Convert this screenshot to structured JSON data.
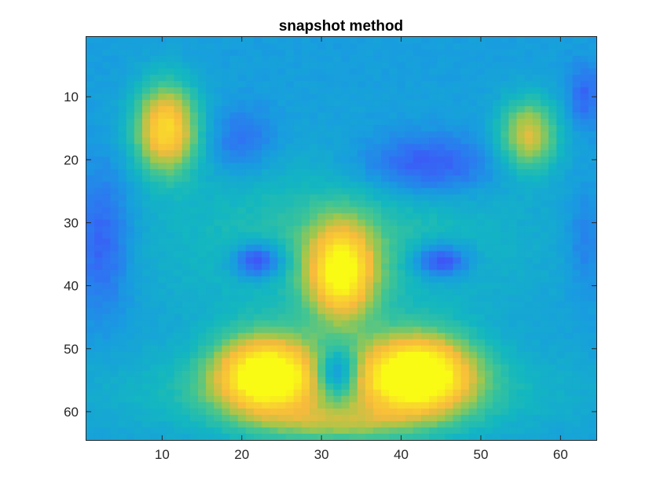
{
  "chart_data": {
    "type": "heatmap",
    "title": "snapshot method",
    "xlabel": "",
    "ylabel": "",
    "grid": false,
    "colormap": "parula",
    "colormap_stops": [
      "#3e26a8",
      "#4743f8",
      "#2f73f3",
      "#189ddf",
      "#13b7c0",
      "#42c592",
      "#a2c74b",
      "#f7ba3c",
      "#f9d42e",
      "#f9fb15"
    ],
    "x_range": [
      1,
      64
    ],
    "y_range": [
      1,
      64
    ],
    "y_reversed": true,
    "x_ticks": [
      10,
      20,
      30,
      40,
      50,
      60
    ],
    "y_ticks": [
      10,
      20,
      30,
      40,
      50,
      60
    ],
    "x_tick_labels": [
      "10",
      "20",
      "30",
      "40",
      "50",
      "60"
    ],
    "y_tick_labels": [
      "10",
      "20",
      "30",
      "40",
      "50",
      "60"
    ],
    "value_range": [
      0,
      1
    ],
    "background_level": 0.34,
    "features": [
      {
        "x": 10.5,
        "y": 15,
        "sx": 2.8,
        "sy": 5.0,
        "amp": 0.56
      },
      {
        "x": 56,
        "y": 16,
        "sx": 2.6,
        "sy": 4.0,
        "amp": 0.4
      },
      {
        "x": 20,
        "y": 17,
        "sx": 3.0,
        "sy": 3.5,
        "amp": -0.14
      },
      {
        "x": 43,
        "y": 21,
        "sx": 6.0,
        "sy": 3.5,
        "amp": -0.22
      },
      {
        "x": 2.5,
        "y": 33,
        "sx": 2.5,
        "sy": 8.0,
        "amp": -0.18
      },
      {
        "x": 63,
        "y": 10,
        "sx": 1.5,
        "sy": 3.5,
        "amp": -0.15
      },
      {
        "x": 63,
        "y": 33,
        "sx": 1.5,
        "sy": 6.0,
        "amp": -0.1
      },
      {
        "x": 32,
        "y": 33,
        "sx": 16.0,
        "sy": 9.0,
        "amp": 0.18
      },
      {
        "x": 22,
        "y": 36,
        "sx": 2.3,
        "sy": 2.0,
        "amp": -0.32
      },
      {
        "x": 45,
        "y": 36,
        "sx": 2.6,
        "sy": 2.0,
        "amp": -0.3
      },
      {
        "x": 32.5,
        "y": 38,
        "sx": 3.0,
        "sy": 5.5,
        "amp": 0.58
      },
      {
        "x": 23,
        "y": 54,
        "sx": 4.5,
        "sy": 4.5,
        "amp": 0.64
      },
      {
        "x": 42,
        "y": 54,
        "sx": 5.0,
        "sy": 4.5,
        "amp": 0.7
      },
      {
        "x": 32,
        "y": 54,
        "sx": 1.8,
        "sy": 2.8,
        "amp": -0.36
      },
      {
        "x": 32,
        "y": 57,
        "sx": 18.0,
        "sy": 5.0,
        "amp": 0.22
      },
      {
        "x": 32,
        "y": 62,
        "sx": 6.0,
        "sy": 2.0,
        "amp": 0.2
      }
    ]
  }
}
